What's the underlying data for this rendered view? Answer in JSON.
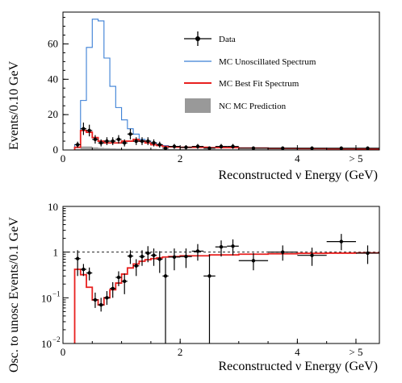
{
  "chart_data": [
    {
      "type": "line",
      "xlabel": "Reconstructed ν Energy (GeV)",
      "ylabel": "Events/0.10 GeV",
      "xlim": [
        0,
        5.4
      ],
      "ylim": [
        0,
        78
      ],
      "x_ticks": [
        {
          "v": 0,
          "label": "0"
        },
        {
          "v": 2,
          "label": "2"
        },
        {
          "v": 4,
          "label": "4"
        },
        {
          "v": 5,
          "label": "> 5"
        }
      ],
      "y_ticks": [
        {
          "v": 0,
          "label": "0"
        },
        {
          "v": 20,
          "label": "20"
        },
        {
          "v": 40,
          "label": "40"
        },
        {
          "v": 60,
          "label": "60"
        }
      ],
      "legend": [
        {
          "label": "Data",
          "kind": "marker"
        },
        {
          "label": "MC Unoscillated Spectrum",
          "kind": "line",
          "color": "#3a7fd5"
        },
        {
          "label": "MC Best Fit Spectrum",
          "kind": "line",
          "color": "#e8201f"
        },
        {
          "label": "NC MC Prediction",
          "kind": "box",
          "color": "#999999"
        }
      ],
      "series": [
        {
          "name": "MC Unoscillated Spectrum",
          "color": "#3a7fd5",
          "style": "step",
          "edges": [
            0.2,
            0.3,
            0.4,
            0.5,
            0.6,
            0.7,
            0.8,
            0.9,
            1.0,
            1.1,
            1.2,
            1.3,
            1.4,
            1.5,
            1.6,
            1.7,
            1.8,
            1.9,
            2.0,
            2.5,
            3.0,
            3.5,
            4.0,
            4.5,
            5.0,
            5.4
          ],
          "values": [
            3,
            28,
            58,
            74,
            73,
            52,
            36,
            24,
            17,
            12,
            9,
            6,
            5,
            4,
            3,
            2.5,
            2,
            1.8,
            1.6,
            1.4,
            1.2,
            1,
            0.9,
            0.8,
            0.7
          ]
        },
        {
          "name": "MC Best Fit Spectrum",
          "color": "#e8201f",
          "style": "step",
          "edges": [
            0.2,
            0.3,
            0.4,
            0.5,
            0.6,
            0.7,
            0.8,
            0.9,
            1.0,
            1.1,
            1.2,
            1.3,
            1.4,
            1.5,
            1.6,
            1.7,
            1.8,
            1.9,
            2.0,
            2.5,
            3.0,
            3.5,
            4.0,
            4.5,
            5.0,
            5.4
          ],
          "values": [
            1.5,
            11,
            10,
            7,
            5,
            4,
            4,
            4,
            5,
            5,
            6,
            5,
            4,
            3,
            2.5,
            2,
            1.8,
            1.6,
            1.5,
            1.3,
            1.1,
            0.9,
            0.8,
            0.7,
            0.6
          ]
        },
        {
          "name": "NC MC Prediction",
          "color": "#999999",
          "style": "fill",
          "edges": [
            0.2,
            0.3,
            0.4,
            0.5,
            0.6,
            0.7,
            0.8,
            0.9,
            1.0,
            1.2,
            1.4,
            1.6,
            1.8,
            2.0,
            2.5,
            3.0,
            3.5,
            4.0,
            4.5,
            5.0,
            5.4
          ],
          "values": [
            0.5,
            2,
            2,
            1.5,
            1.2,
            1,
            0.9,
            0.8,
            0.7,
            0.6,
            0.6,
            0.5,
            0.5,
            0.5,
            0.4,
            0.4,
            0.4,
            0.3,
            0.3,
            0.3
          ]
        },
        {
          "name": "Data",
          "color": "#000000",
          "style": "points",
          "points": [
            {
              "x": 0.25,
              "y": 3,
              "xerr": 0.05,
              "yerr": 1.7
            },
            {
              "x": 0.35,
              "y": 12,
              "xerr": 0.05,
              "yerr": 3.5
            },
            {
              "x": 0.45,
              "y": 11,
              "xerr": 0.05,
              "yerr": 3.3
            },
            {
              "x": 0.55,
              "y": 6,
              "xerr": 0.05,
              "yerr": 2.4
            },
            {
              "x": 0.65,
              "y": 4,
              "xerr": 0.05,
              "yerr": 2
            },
            {
              "x": 0.75,
              "y": 5,
              "xerr": 0.05,
              "yerr": 2.2
            },
            {
              "x": 0.85,
              "y": 5,
              "xerr": 0.05,
              "yerr": 2.2
            },
            {
              "x": 0.95,
              "y": 6,
              "xerr": 0.05,
              "yerr": 2.4
            },
            {
              "x": 1.05,
              "y": 4,
              "xerr": 0.05,
              "yerr": 2
            },
            {
              "x": 1.15,
              "y": 9,
              "xerr": 0.05,
              "yerr": 3
            },
            {
              "x": 1.25,
              "y": 5,
              "xerr": 0.05,
              "yerr": 2.2
            },
            {
              "x": 1.35,
              "y": 5,
              "xerr": 0.05,
              "yerr": 2.2
            },
            {
              "x": 1.45,
              "y": 5,
              "xerr": 0.05,
              "yerr": 2.2
            },
            {
              "x": 1.55,
              "y": 4,
              "xerr": 0.05,
              "yerr": 2
            },
            {
              "x": 1.65,
              "y": 3,
              "xerr": 0.05,
              "yerr": 1.7
            },
            {
              "x": 1.75,
              "y": 1,
              "xerr": 0.05,
              "yerr": 1
            },
            {
              "x": 1.9,
              "y": 2,
              "xerr": 0.1,
              "yerr": 1.4
            },
            {
              "x": 2.1,
              "y": 1.5,
              "xerr": 0.1,
              "yerr": 1.2
            },
            {
              "x": 2.3,
              "y": 2,
              "xerr": 0.1,
              "yerr": 1.4
            },
            {
              "x": 2.5,
              "y": 1,
              "xerr": 0.1,
              "yerr": 1
            },
            {
              "x": 2.7,
              "y": 2,
              "xerr": 0.1,
              "yerr": 1.4
            },
            {
              "x": 2.9,
              "y": 2,
              "xerr": 0.1,
              "yerr": 1.4
            },
            {
              "x": 3.25,
              "y": 1,
              "xerr": 0.25,
              "yerr": 1
            },
            {
              "x": 3.75,
              "y": 1,
              "xerr": 0.25,
              "yerr": 1
            },
            {
              "x": 4.25,
              "y": 1,
              "xerr": 0.25,
              "yerr": 1
            },
            {
              "x": 4.75,
              "y": 1,
              "xerr": 0.25,
              "yerr": 1
            },
            {
              "x": 5.2,
              "y": 1,
              "xerr": 0.2,
              "yerr": 1
            }
          ]
        }
      ]
    },
    {
      "type": "line",
      "xlabel": "Reconstructed ν Energy (GeV)",
      "ylabel": "Osc. to unosc Events/0.1 GeV",
      "xlim": [
        0,
        5.4
      ],
      "ylim": [
        0.01,
        10
      ],
      "yscale": "log",
      "reference_line": 1,
      "x_ticks": [
        {
          "v": 0,
          "label": "0"
        },
        {
          "v": 2,
          "label": "2"
        },
        {
          "v": 4,
          "label": "4"
        },
        {
          "v": 5,
          "label": "> 5"
        }
      ],
      "y_ticks": [
        {
          "v": 0.01,
          "label": "10",
          "sup": "−2"
        },
        {
          "v": 0.1,
          "label": "10",
          "sup": "−1"
        },
        {
          "v": 1,
          "label": "1",
          "sup": ""
        },
        {
          "v": 10,
          "label": "10",
          "sup": ""
        }
      ],
      "series": [
        {
          "name": "MC Best Fit Ratio",
          "color": "#e8201f",
          "style": "step",
          "edges": [
            0.2,
            0.3,
            0.4,
            0.5,
            0.6,
            0.7,
            0.8,
            0.9,
            1.0,
            1.1,
            1.2,
            1.3,
            1.4,
            1.5,
            1.6,
            1.7,
            1.8,
            2.0,
            2.5,
            3.0,
            3.5,
            4.0,
            4.5,
            5.0,
            5.4
          ],
          "values": [
            0.42,
            0.32,
            0.17,
            0.09,
            0.07,
            0.1,
            0.15,
            0.21,
            0.33,
            0.45,
            0.55,
            0.63,
            0.68,
            0.72,
            0.75,
            0.78,
            0.8,
            0.83,
            0.87,
            0.9,
            0.92,
            0.94,
            0.95,
            0.96
          ]
        },
        {
          "name": "Data",
          "color": "#000000",
          "style": "points",
          "points": [
            {
              "x": 0.25,
              "y": 0.72,
              "xerr": 0.05,
              "lo": 0.3,
              "hi": 1.1
            },
            {
              "x": 0.35,
              "y": 0.42,
              "xerr": 0.05,
              "lo": 0.3,
              "hi": 0.55
            },
            {
              "x": 0.45,
              "y": 0.35,
              "xerr": 0.05,
              "lo": 0.24,
              "hi": 0.46
            },
            {
              "x": 0.55,
              "y": 0.09,
              "xerr": 0.05,
              "lo": 0.06,
              "hi": 0.13
            },
            {
              "x": 0.65,
              "y": 0.07,
              "xerr": 0.05,
              "lo": 0.05,
              "hi": 0.1
            },
            {
              "x": 0.75,
              "y": 0.1,
              "xerr": 0.05,
              "lo": 0.07,
              "hi": 0.14
            },
            {
              "x": 0.85,
              "y": 0.16,
              "xerr": 0.05,
              "lo": 0.1,
              "hi": 0.22
            },
            {
              "x": 0.95,
              "y": 0.28,
              "xerr": 0.05,
              "lo": 0.18,
              "hi": 0.38
            },
            {
              "x": 1.05,
              "y": 0.23,
              "xerr": 0.05,
              "lo": 0.12,
              "hi": 0.34
            },
            {
              "x": 1.15,
              "y": 0.82,
              "xerr": 0.05,
              "lo": 0.55,
              "hi": 1.1
            },
            {
              "x": 1.25,
              "y": 0.5,
              "xerr": 0.05,
              "lo": 0.3,
              "hi": 0.7
            },
            {
              "x": 1.35,
              "y": 0.8,
              "xerr": 0.05,
              "lo": 0.5,
              "hi": 1.1
            },
            {
              "x": 1.45,
              "y": 0.95,
              "xerr": 0.05,
              "lo": 0.6,
              "hi": 1.35
            },
            {
              "x": 1.55,
              "y": 0.85,
              "xerr": 0.05,
              "lo": 0.5,
              "hi": 1.2
            },
            {
              "x": 1.65,
              "y": 0.7,
              "xerr": 0.05,
              "lo": 0.35,
              "hi": 1.05
            },
            {
              "x": 1.75,
              "y": 0.3,
              "xerr": 0.05,
              "lo": 0.01,
              "hi": 0.75
            },
            {
              "x": 1.9,
              "y": 0.78,
              "xerr": 0.1,
              "lo": 0.4,
              "hi": 1.2
            },
            {
              "x": 2.1,
              "y": 0.8,
              "xerr": 0.1,
              "lo": 0.45,
              "hi": 1.2
            },
            {
              "x": 2.3,
              "y": 1.05,
              "xerr": 0.1,
              "lo": 0.65,
              "hi": 1.5
            },
            {
              "x": 2.5,
              "y": 0.3,
              "xerr": 0.1,
              "lo": 0.01,
              "hi": 0.9
            },
            {
              "x": 2.7,
              "y": 1.3,
              "xerr": 0.1,
              "lo": 0.8,
              "hi": 1.8
            },
            {
              "x": 2.9,
              "y": 1.35,
              "xerr": 0.1,
              "lo": 0.85,
              "hi": 1.9
            },
            {
              "x": 3.25,
              "y": 0.65,
              "xerr": 0.25,
              "lo": 0.4,
              "hi": 0.95
            },
            {
              "x": 3.75,
              "y": 1.0,
              "xerr": 0.25,
              "lo": 0.65,
              "hi": 1.4
            },
            {
              "x": 4.25,
              "y": 0.85,
              "xerr": 0.25,
              "lo": 0.5,
              "hi": 1.25
            },
            {
              "x": 4.75,
              "y": 1.7,
              "xerr": 0.25,
              "lo": 1.1,
              "hi": 2.5
            },
            {
              "x": 5.2,
              "y": 0.95,
              "xerr": 0.2,
              "lo": 0.55,
              "hi": 1.4
            }
          ]
        }
      ]
    }
  ]
}
